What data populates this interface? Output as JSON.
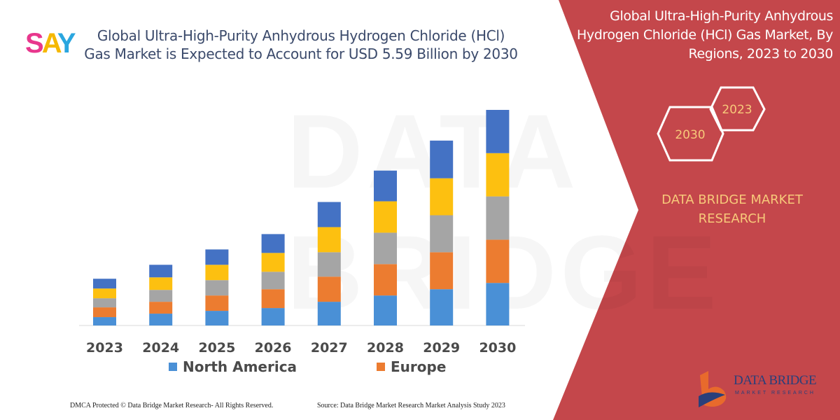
{
  "logo": {
    "s": "S",
    "a": "A",
    "y": "Y"
  },
  "main_title": "Global Ultra-High-Purity Anhydrous Hydrogen Chloride (HCl) Gas Market is Expected to Account for USD 5.59 Billion by 2030",
  "side_title": "Global Ultra-High-Purity Anhydrous Hydrogen Chloride (HCl) Gas Market, By Regions, 2023 to 2030",
  "hexagons": {
    "start": "2023",
    "end": "2030"
  },
  "brand": "DATA BRIDGE MARKET RESEARCH",
  "watermark": "DATA BRIDGE",
  "brand_logo": {
    "name": "DATA BRIDGE",
    "tagline": "MARKET RESEARCH"
  },
  "footer": {
    "left": "DMCA Protected © Data Bridge Market Research-  All Rights Reserved.",
    "right": "Source: Data Bridge Market Research  Market Analysis Study 2023"
  },
  "colors": {
    "panel_red": "#c4474b",
    "north_america": "#4a90d6",
    "europe": "#ec7c30",
    "segment3": "#a5a5a5",
    "segment4": "#fdc010",
    "segment5": "#4472c4"
  },
  "chart_data": {
    "type": "bar",
    "stacked": true,
    "categories": [
      "2023",
      "2024",
      "2025",
      "2026",
      "2027",
      "2028",
      "2029",
      "2030"
    ],
    "series": [
      {
        "name": "North America",
        "color": "#4a90d6",
        "values": [
          12,
          17,
          21,
          25,
          34,
          43,
          52,
          61
        ]
      },
      {
        "name": "Europe",
        "color": "#ec7c30",
        "values": [
          14,
          17,
          22,
          27,
          36,
          45,
          53,
          62
        ]
      },
      {
        "color": "#a5a5a5",
        "values": [
          13,
          17,
          22,
          25,
          35,
          45,
          53,
          62
        ]
      },
      {
        "color": "#fdc010",
        "values": [
          14,
          18,
          22,
          27,
          36,
          45,
          53,
          62
        ]
      },
      {
        "color": "#4472c4",
        "values": [
          14,
          18,
          22,
          27,
          36,
          44,
          54,
          62
        ]
      }
    ],
    "legend_visible": [
      "North America",
      "Europe"
    ],
    "legend_position": "bottom",
    "grid": false
  }
}
